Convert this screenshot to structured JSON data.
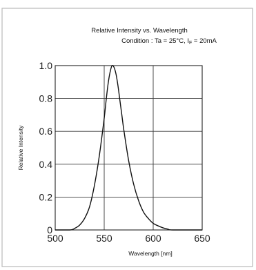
{
  "chart_data": {
    "type": "line",
    "title": "Relative Intensity vs. Wavelength",
    "subtitle": {
      "prefix": "Condition : Ta = 25",
      "degree": "°C, I",
      "sub": "F",
      "suffix": " = 20mA"
    },
    "xlabel": "Wavelength [nm]",
    "ylabel": "Relative Intensity",
    "xlim": [
      500,
      650
    ],
    "ylim": [
      0,
      1.0
    ],
    "x_ticks": [
      "500",
      "550",
      "600",
      "650"
    ],
    "y_ticks": [
      "0",
      "0.2",
      "0.4",
      "0.6",
      "0.8",
      "1.0"
    ],
    "grid": true,
    "legend": "none",
    "series": [
      {
        "x": [
          500,
          515,
          520,
          525,
          530,
          535,
          540,
          545,
          550,
          552,
          554,
          556,
          558,
          560,
          562,
          564,
          566,
          568,
          570,
          575,
          580,
          585,
          590,
          595,
          600,
          605,
          610,
          615,
          620,
          650
        ],
        "values": [
          0,
          0,
          0.01,
          0.03,
          0.07,
          0.14,
          0.27,
          0.45,
          0.68,
          0.79,
          0.89,
          0.96,
          1.0,
          0.99,
          0.95,
          0.88,
          0.79,
          0.7,
          0.61,
          0.42,
          0.28,
          0.18,
          0.11,
          0.07,
          0.04,
          0.025,
          0.013,
          0.005,
          0,
          0
        ]
      }
    ]
  }
}
